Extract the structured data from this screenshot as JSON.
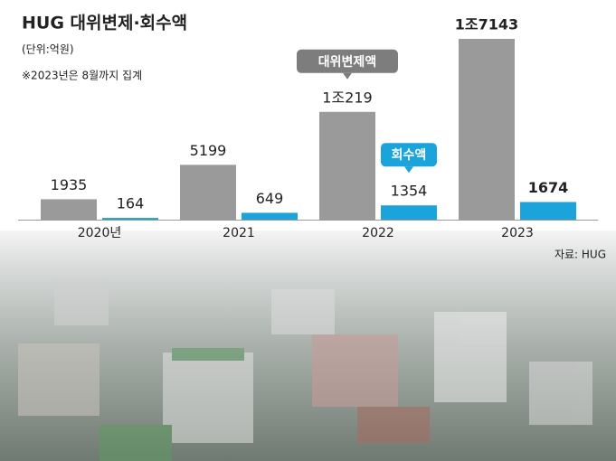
{
  "chart_data": {
    "type": "bar",
    "title": "HUG 대위변제·회수액",
    "subtitle": "(단위:억원)",
    "note": "※2023년은 8월까지 집계",
    "source": "자료: HUG",
    "categories": [
      "2020년",
      "2021",
      "2022",
      "2023"
    ],
    "series": [
      {
        "name": "대위변제액",
        "color": "#9a9a9a",
        "values": [
          1935,
          5199,
          10219,
          17143
        ],
        "value_labels": [
          "1935",
          "5199",
          "1조219",
          "1조7143"
        ]
      },
      {
        "name": "회수액",
        "color": "#1ba3dc",
        "values": [
          164,
          649,
          1354,
          1674
        ]
      }
    ]
  }
}
